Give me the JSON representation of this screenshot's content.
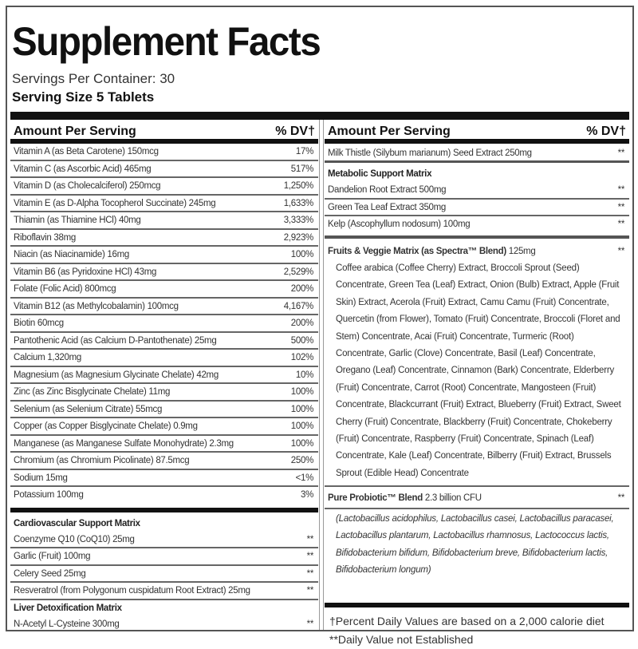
{
  "title": "Supplement Facts",
  "servings_per_container": "Servings Per Container: 30",
  "serving_size": "Serving Size 5 Tablets",
  "header": {
    "amount": "Amount Per Serving",
    "dv": "% DV†"
  },
  "left_rows": [
    {
      "name": "Vitamin A (as Beta Carotene) 150mcg",
      "dv": "17%"
    },
    {
      "name": "Vitamin C (as Ascorbic Acid) 465mg",
      "dv": "517%"
    },
    {
      "name": "Vitamin D (as Cholecalciferol) 250mcg",
      "dv": "1,250%"
    },
    {
      "name": "Vitamin E (as D-Alpha Tocopherol Succinate) 245mg",
      "dv": "1,633%"
    },
    {
      "name": "Thiamin (as Thiamine HCl) 40mg",
      "dv": "3,333%"
    },
    {
      "name": "Riboflavin 38mg",
      "dv": "2,923%"
    },
    {
      "name": "Niacin (as Niacinamide) 16mg",
      "dv": "100%"
    },
    {
      "name": "Vitamin B6 (as Pyridoxine HCl) 43mg",
      "dv": "2,529%"
    },
    {
      "name": "Folate (Folic Acid) 800mcg",
      "dv": "200%"
    },
    {
      "name": "Vitamin B12 (as Methylcobalamin) 100mcg",
      "dv": "4,167%"
    },
    {
      "name": "Biotin 60mcg",
      "dv": "200%"
    },
    {
      "name": "Pantothenic Acid (as Calcium D-Pantothenate) 25mg",
      "dv": "500%"
    },
    {
      "name": "Calcium 1,320mg",
      "dv": "102%"
    },
    {
      "name": "Magnesium (as Magnesium Glycinate Chelate) 42mg",
      "dv": "10%"
    },
    {
      "name": "Zinc (as Zinc Bisglycinate Chelate) 11mg",
      "dv": "100%"
    },
    {
      "name": "Selenium (as Selenium Citrate) 55mcg",
      "dv": "100%"
    },
    {
      "name": "Copper (as Copper Bisglycinate Chelate) 0.9mg",
      "dv": "100%"
    },
    {
      "name": "Manganese (as Manganese Sulfate Monohydrate) 2.3mg",
      "dv": "100%"
    },
    {
      "name": "Chromium (as Chromium Picolinate) 87.5mcg",
      "dv": "250%"
    },
    {
      "name": "Sodium 15mg",
      "dv": "<1%"
    },
    {
      "name": "Potassium 100mg",
      "dv": "3%"
    }
  ],
  "cardio": {
    "title": "Cardiovascular Support Matrix",
    "rows": [
      {
        "name": "Coenzyme Q10 (CoQ10) 25mg",
        "dv": "**"
      },
      {
        "name": "Garlic (Fruit) 100mg",
        "dv": "**"
      },
      {
        "name": "Celery Seed 25mg",
        "dv": "**"
      },
      {
        "name": "Resveratrol (from Polygonum cuspidatum Root Extract) 25mg",
        "dv": "**"
      }
    ]
  },
  "liver": {
    "title": "Liver Detoxification Matrix",
    "rows": [
      {
        "name": "N-Acetyl L-Cysteine 300mg",
        "dv": "**"
      }
    ]
  },
  "milk_thistle": {
    "name": "Milk Thistle (Silybum marianum) Seed Extract 250mg",
    "dv": "**"
  },
  "metabolic": {
    "title": "Metabolic Support Matrix",
    "rows": [
      {
        "name": "Dandelion Root Extract 500mg",
        "dv": "**"
      },
      {
        "name": "Green Tea Leaf Extract 350mg",
        "dv": "**"
      },
      {
        "name": "Kelp (Ascophyllum nodosum) 100mg",
        "dv": "**"
      }
    ]
  },
  "fruits": {
    "title": "Fruits & Veggie Matrix (as Spectra™ Blend)",
    "amount": "125mg",
    "dv": "**",
    "text": "Coffee arabica (Coffee Cherry) Extract, Broccoli Sprout (Seed) Concentrate, Green Tea (Leaf) Extract, Onion (Bulb) Extract, Apple (Fruit Skin) Extract, Acerola (Fruit) Extract, Camu Camu (Fruit) Concentrate, Quercetin (from Flower), Tomato (Fruit) Concentrate, Broccoli (Floret and Stem) Concentrate, Acai (Fruit) Concentrate, Turmeric (Root) Concentrate, Garlic (Clove) Concentrate, Basil (Leaf) Concentrate, Oregano (Leaf) Concentrate, Cinnamon (Bark) Concentrate, Elderberry (Fruit) Concentrate, Carrot (Root) Concentrate, Mangosteen (Fruit) Concentrate, Blackcurrant (Fruit) Extract, Blueberry (Fruit) Extract, Sweet Cherry (Fruit) Concentrate, Blackberry (Fruit) Concentrate, Chokeberry (Fruit) Concentrate, Raspberry (Fruit) Concentrate, Spinach (Leaf) Concentrate, Kale (Leaf) Concentrate, Bilberry (Fruit) Extract, Brussels Sprout (Edible Head) Concentrate"
  },
  "probiotic": {
    "title": "Pure Probiotic™ Blend",
    "amount": "2.3 billion CFU",
    "dv": "**",
    "text": "(Lactobacillus acidophilus, Lactobacillus casei, Lactobacillus paracasei, Lactobacillus plantarum, Lactobacillus rhamnosus, Lactococcus lactis, Bifidobacterium bifidum, Bifidobacterium breve, Bifidobacterium lactis, Bifidobacterium longum)"
  },
  "footnotes": [
    "†Percent Daily Values are based on a 2,000 calorie diet",
    "**Daily Value not Established"
  ]
}
